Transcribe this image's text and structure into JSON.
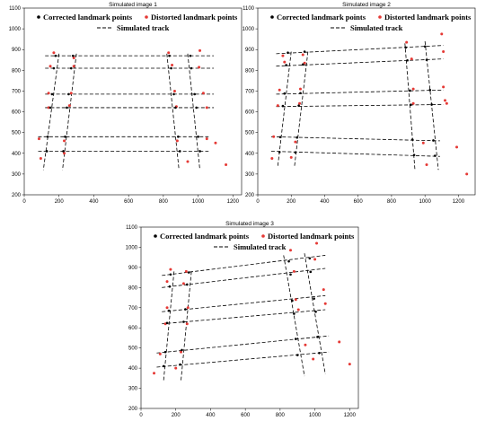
{
  "chart_data": [
    {
      "type": "scatter",
      "title": "Simulated image 1",
      "xlim": [
        0,
        1250
      ],
      "ylim": [
        200,
        1100
      ],
      "xticks": [
        0,
        200,
        400,
        600,
        800,
        1000,
        1200
      ],
      "yticks": [
        200,
        300,
        400,
        500,
        600,
        700,
        800,
        900,
        1000,
        1100
      ],
      "legend": {
        "corrected": "Corrected landmark points",
        "distorted": "Distorted landmark points",
        "track": "Simulated track"
      },
      "tracks": [
        [
          [
            120,
            870
          ],
          [
            1090,
            870
          ]
        ],
        [
          [
            120,
            810
          ],
          [
            1090,
            810
          ]
        ],
        [
          [
            120,
            685
          ],
          [
            1090,
            685
          ]
        ],
        [
          [
            120,
            620
          ],
          [
            1090,
            620
          ]
        ],
        [
          [
            80,
            480
          ],
          [
            1060,
            480
          ]
        ],
        [
          [
            80,
            410
          ],
          [
            1060,
            410
          ]
        ],
        [
          [
            200,
            880
          ],
          [
            110,
            320
          ]
        ],
        [
          [
            300,
            880
          ],
          [
            220,
            320
          ]
        ],
        [
          [
            820,
            880
          ],
          [
            890,
            320
          ]
        ],
        [
          [
            940,
            880
          ],
          [
            1010,
            320
          ]
        ]
      ],
      "corrected": [
        [
          180,
          870
        ],
        [
          280,
          870
        ],
        [
          835,
          870
        ],
        [
          955,
          870
        ],
        [
          170,
          810
        ],
        [
          270,
          810
        ],
        [
          845,
          810
        ],
        [
          960,
          810
        ],
        [
          160,
          685
        ],
        [
          255,
          685
        ],
        [
          860,
          685
        ],
        [
          980,
          685
        ],
        [
          150,
          620
        ],
        [
          245,
          620
        ],
        [
          870,
          620
        ],
        [
          990,
          620
        ],
        [
          135,
          480
        ],
        [
          235,
          480
        ],
        [
          885,
          480
        ],
        [
          1000,
          480
        ],
        [
          130,
          410
        ],
        [
          225,
          410
        ],
        [
          895,
          410
        ],
        [
          1010,
          410
        ]
      ],
      "distorted": [
        [
          170,
          885
        ],
        [
          285,
          860
        ],
        [
          830,
          885
        ],
        [
          1010,
          895
        ],
        [
          150,
          820
        ],
        [
          285,
          820
        ],
        [
          850,
          825
        ],
        [
          1005,
          815
        ],
        [
          140,
          690
        ],
        [
          270,
          690
        ],
        [
          865,
          700
        ],
        [
          1030,
          690
        ],
        [
          140,
          620
        ],
        [
          260,
          630
        ],
        [
          875,
          625
        ],
        [
          1050,
          620
        ],
        [
          85,
          470
        ],
        [
          230,
          460
        ],
        [
          880,
          460
        ],
        [
          1050,
          470
        ],
        [
          95,
          375
        ],
        [
          230,
          400
        ],
        [
          940,
          360
        ],
        [
          1100,
          450
        ],
        [
          1160,
          345
        ]
      ]
    },
    {
      "type": "scatter",
      "title": "Simulated image 2",
      "xlim": [
        0,
        1300
      ],
      "ylim": [
        200,
        1100
      ],
      "xticks": [
        0,
        200,
        400,
        600,
        800,
        1000,
        1200
      ],
      "yticks": [
        200,
        300,
        400,
        500,
        600,
        700,
        800,
        900,
        1000,
        1100
      ],
      "legend": {
        "corrected": "Corrected landmark points",
        "distorted": "Distorted landmark points",
        "track": "Simulated track"
      },
      "tracks": [
        [
          [
            110,
            880
          ],
          [
            1110,
            920
          ]
        ],
        [
          [
            110,
            820
          ],
          [
            1110,
            855
          ]
        ],
        [
          [
            110,
            685
          ],
          [
            1110,
            705
          ]
        ],
        [
          [
            110,
            625
          ],
          [
            1110,
            635
          ]
        ],
        [
          [
            80,
            480
          ],
          [
            1090,
            460
          ]
        ],
        [
          [
            80,
            410
          ],
          [
            1090,
            385
          ]
        ],
        [
          [
            200,
            890
          ],
          [
            120,
            340
          ]
        ],
        [
          [
            300,
            890
          ],
          [
            220,
            340
          ]
        ],
        [
          [
            880,
            930
          ],
          [
            940,
            320
          ]
        ],
        [
          [
            1000,
            940
          ],
          [
            1080,
            320
          ]
        ]
      ],
      "corrected": [
        [
          180,
          885
        ],
        [
          280,
          890
        ],
        [
          885,
          910
        ],
        [
          1000,
          915
        ],
        [
          170,
          825
        ],
        [
          270,
          828
        ],
        [
          895,
          848
        ],
        [
          1010,
          850
        ],
        [
          160,
          688
        ],
        [
          255,
          690
        ],
        [
          910,
          702
        ],
        [
          1030,
          705
        ],
        [
          150,
          628
        ],
        [
          245,
          630
        ],
        [
          915,
          634
        ],
        [
          1040,
          635
        ],
        [
          135,
          478
        ],
        [
          235,
          476
        ],
        [
          925,
          466
        ],
        [
          1050,
          462
        ],
        [
          130,
          406
        ],
        [
          225,
          404
        ],
        [
          935,
          392
        ],
        [
          1060,
          388
        ]
      ],
      "distorted": [
        [
          150,
          870
        ],
        [
          270,
          875
        ],
        [
          890,
          935
        ],
        [
          1100,
          975
        ],
        [
          160,
          840
        ],
        [
          280,
          835
        ],
        [
          920,
          855
        ],
        [
          1110,
          890
        ],
        [
          130,
          705
        ],
        [
          255,
          710
        ],
        [
          930,
          710
        ],
        [
          1110,
          720
        ],
        [
          120,
          630
        ],
        [
          250,
          640
        ],
        [
          930,
          640
        ],
        [
          1130,
          640
        ],
        [
          95,
          480
        ],
        [
          225,
          455
        ],
        [
          990,
          450
        ],
        [
          1190,
          430
        ],
        [
          85,
          375
        ],
        [
          200,
          380
        ],
        [
          1010,
          345
        ],
        [
          1250,
          300
        ],
        [
          1120,
          655
        ]
      ]
    },
    {
      "type": "scatter",
      "title": "Simulated image 3",
      "xlim": [
        0,
        1250
      ],
      "ylim": [
        200,
        1100
      ],
      "xticks": [
        0,
        200,
        400,
        600,
        800,
        1000,
        1200
      ],
      "yticks": [
        200,
        300,
        400,
        500,
        600,
        700,
        800,
        900,
        1000,
        1100
      ],
      "legend": {
        "corrected": "Corrected landmark points",
        "distorted": "Distorted landmark points",
        "track": "Simulated track"
      },
      "tracks": [
        [
          [
            120,
            860
          ],
          [
            1060,
            960
          ]
        ],
        [
          [
            120,
            800
          ],
          [
            1060,
            895
          ]
        ],
        [
          [
            120,
            680
          ],
          [
            1060,
            760
          ]
        ],
        [
          [
            120,
            620
          ],
          [
            1060,
            690
          ]
        ],
        [
          [
            90,
            475
          ],
          [
            1080,
            560
          ]
        ],
        [
          [
            90,
            405
          ],
          [
            1080,
            480
          ]
        ],
        [
          [
            190,
            880
          ],
          [
            130,
            340
          ]
        ],
        [
          [
            290,
            880
          ],
          [
            230,
            340
          ]
        ],
        [
          [
            820,
            960
          ],
          [
            940,
            360
          ]
        ],
        [
          [
            940,
            970
          ],
          [
            1060,
            370
          ]
        ]
      ],
      "corrected": [
        [
          170,
          865
        ],
        [
          275,
          875
        ],
        [
          850,
          930
        ],
        [
          970,
          945
        ],
        [
          165,
          805
        ],
        [
          265,
          815
        ],
        [
          860,
          865
        ],
        [
          975,
          878
        ],
        [
          160,
          685
        ],
        [
          255,
          692
        ],
        [
          870,
          735
        ],
        [
          995,
          745
        ],
        [
          150,
          624
        ],
        [
          245,
          630
        ],
        [
          880,
          670
        ],
        [
          1005,
          680
        ],
        [
          140,
          480
        ],
        [
          235,
          490
        ],
        [
          890,
          545
        ],
        [
          1015,
          555
        ],
        [
          130,
          410
        ],
        [
          225,
          418
        ],
        [
          900,
          465
        ],
        [
          1025,
          475
        ]
      ],
      "distorted": [
        [
          170,
          890
        ],
        [
          260,
          880
        ],
        [
          860,
          985
        ],
        [
          1010,
          1020
        ],
        [
          150,
          830
        ],
        [
          245,
          820
        ],
        [
          880,
          880
        ],
        [
          1000,
          940
        ],
        [
          150,
          700
        ],
        [
          270,
          700
        ],
        [
          890,
          740
        ],
        [
          1050,
          790
        ],
        [
          140,
          620
        ],
        [
          265,
          620
        ],
        [
          905,
          690
        ],
        [
          1060,
          720
        ],
        [
          110,
          470
        ],
        [
          230,
          480
        ],
        [
          945,
          515
        ],
        [
          1140,
          530
        ],
        [
          75,
          375
        ],
        [
          200,
          400
        ],
        [
          990,
          445
        ],
        [
          1200,
          420
        ]
      ]
    }
  ]
}
